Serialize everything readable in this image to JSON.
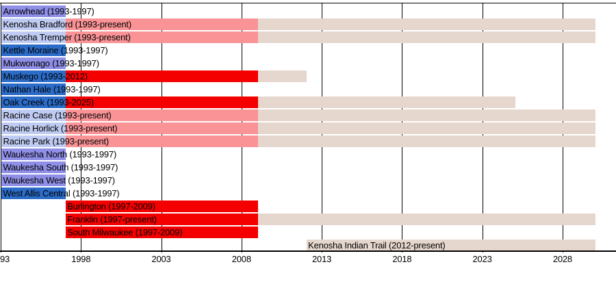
{
  "chart_data": {
    "type": "bar",
    "subtype": "gantt-timeline",
    "title": "",
    "xlabel": "",
    "ylabel": "",
    "grid": true,
    "x_axis": {
      "start_year": 1993,
      "end_year": 2030.5,
      "tick_years": [
        1993,
        1998,
        2003,
        2008,
        2013,
        2018,
        2023,
        2028
      ],
      "tick_labels": [
        "93",
        "1998",
        "2003",
        "2008",
        "2013",
        "2018",
        "2023",
        "2028"
      ]
    },
    "present_end_year": 2030,
    "solid_until_year": 2009,
    "colors": {
      "purple": "#8F8FE8",
      "blue": "#2B6CC8",
      "light_blue": "#BFCBF2",
      "pink": "#FA9396",
      "red": "#F40000",
      "tan": "#E6D7CE",
      "grid": "#000000",
      "text": "#000000",
      "background": "#FFFFFF"
    },
    "rows": [
      {
        "name": "Arrowhead",
        "label": "Arrowhead (1993-1997)",
        "segments": [
          {
            "from": 1993,
            "to": 1997,
            "color": "purple"
          }
        ]
      },
      {
        "name": "Kenosha Bradford",
        "label": "Kenosha Bradford (1993-present)",
        "segments": [
          {
            "from": 1993,
            "to": 1997,
            "color": "light_blue"
          },
          {
            "from": 1997,
            "to": 2009,
            "color": "pink"
          },
          {
            "from": 2009,
            "to": 2030,
            "color": "tan"
          }
        ]
      },
      {
        "name": "Kenosha Tremper",
        "label": "Kenosha Tremper (1993-present)",
        "segments": [
          {
            "from": 1993,
            "to": 1997,
            "color": "light_blue"
          },
          {
            "from": 1997,
            "to": 2009,
            "color": "pink"
          },
          {
            "from": 2009,
            "to": 2030,
            "color": "tan"
          }
        ]
      },
      {
        "name": "Kettle Moraine",
        "label": "Kettle Moraine (1993-1997)",
        "segments": [
          {
            "from": 1993,
            "to": 1997,
            "color": "blue"
          }
        ]
      },
      {
        "name": "Mukwonago",
        "label": "Mukwonago (1993-1997)",
        "segments": [
          {
            "from": 1993,
            "to": 1997,
            "color": "purple"
          }
        ]
      },
      {
        "name": "Muskego",
        "label": "Muskego (1993-2012)",
        "segments": [
          {
            "from": 1993,
            "to": 1997,
            "color": "blue"
          },
          {
            "from": 1997,
            "to": 2009,
            "color": "red"
          },
          {
            "from": 2009,
            "to": 2012,
            "color": "tan"
          }
        ]
      },
      {
        "name": "Nathan Hale",
        "label": "Nathan Hale (1993-1997)",
        "segments": [
          {
            "from": 1993,
            "to": 1997,
            "color": "blue"
          }
        ]
      },
      {
        "name": "Oak Creek",
        "label": "Oak Creek (1993-2025)",
        "segments": [
          {
            "from": 1993,
            "to": 1997,
            "color": "blue"
          },
          {
            "from": 1997,
            "to": 2009,
            "color": "red"
          },
          {
            "from": 2009,
            "to": 2025,
            "color": "tan"
          }
        ]
      },
      {
        "name": "Racine Case",
        "label": "Racine Case (1993-present)",
        "segments": [
          {
            "from": 1993,
            "to": 1997,
            "color": "light_blue"
          },
          {
            "from": 1997,
            "to": 2009,
            "color": "pink"
          },
          {
            "from": 2009,
            "to": 2030,
            "color": "tan"
          }
        ]
      },
      {
        "name": "Racine Horlick",
        "label": "Racine Horlick (1993-present)",
        "segments": [
          {
            "from": 1993,
            "to": 1997,
            "color": "light_blue"
          },
          {
            "from": 1997,
            "to": 2009,
            "color": "pink"
          },
          {
            "from": 2009,
            "to": 2030,
            "color": "tan"
          }
        ]
      },
      {
        "name": "Racine Park",
        "label": "Racine Park (1993-present)",
        "segments": [
          {
            "from": 1993,
            "to": 1997,
            "color": "light_blue"
          },
          {
            "from": 1997,
            "to": 2009,
            "color": "pink"
          },
          {
            "from": 2009,
            "to": 2030,
            "color": "tan"
          }
        ]
      },
      {
        "name": "Waukesha North",
        "label": "Waukesha North (1993-1997)",
        "segments": [
          {
            "from": 1993,
            "to": 1997,
            "color": "purple"
          }
        ]
      },
      {
        "name": "Waukesha South",
        "label": "Waukesha South (1993-1997)",
        "segments": [
          {
            "from": 1993,
            "to": 1997,
            "color": "purple"
          }
        ]
      },
      {
        "name": "Waukesha West",
        "label": "Waukesha West (1993-1997)",
        "segments": [
          {
            "from": 1993,
            "to": 1997,
            "color": "purple"
          }
        ]
      },
      {
        "name": "West Allis Central",
        "label": "West Allis Central (1993-1997)",
        "segments": [
          {
            "from": 1993,
            "to": 1997,
            "color": "blue"
          }
        ]
      },
      {
        "name": "Burlington",
        "label": "Burlington (1997-2009)",
        "segments": [
          {
            "from": 1997,
            "to": 2009,
            "color": "red"
          }
        ]
      },
      {
        "name": "Franklin",
        "label": "Franklin (1997-present)",
        "segments": [
          {
            "from": 1997,
            "to": 2009,
            "color": "red"
          },
          {
            "from": 2009,
            "to": 2030,
            "color": "tan"
          }
        ]
      },
      {
        "name": "South Milwaukee",
        "label": "South Milwaukee (1997-2009)",
        "segments": [
          {
            "from": 1997,
            "to": 2009,
            "color": "red"
          }
        ]
      },
      {
        "name": "Kenosha Indian Trail",
        "label": "Kenosha Indian Trail (2012-present)",
        "segments": [
          {
            "from": 2012,
            "to": 2030,
            "color": "tan"
          }
        ]
      }
    ]
  }
}
